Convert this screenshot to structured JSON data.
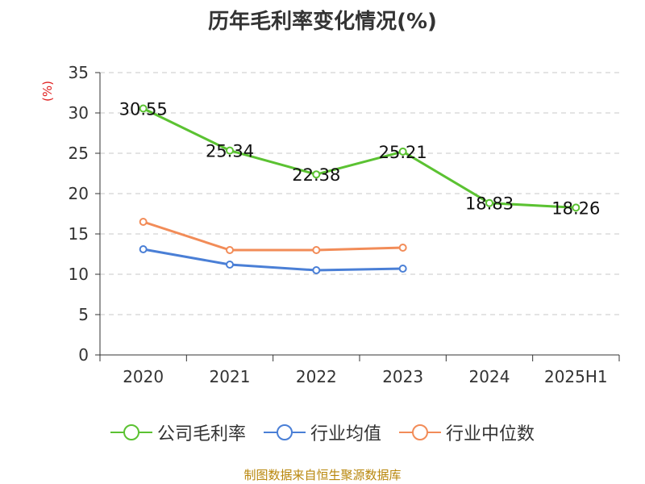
{
  "chart_data": {
    "type": "line",
    "title": "历年毛利率变化情况(%)",
    "ylabel": "(%)",
    "categories": [
      "2020",
      "2021",
      "2022",
      "2023",
      "2024",
      "2025H1"
    ],
    "ylim": [
      0,
      35
    ],
    "yticks": [
      0,
      5,
      10,
      15,
      20,
      25,
      30,
      35
    ],
    "grid": true,
    "legend_position": "bottom",
    "series": [
      {
        "name": "公司毛利率",
        "color": "#5bc232",
        "values": [
          30.55,
          25.34,
          22.38,
          25.21,
          18.83,
          18.26
        ],
        "labels": true
      },
      {
        "name": "行业均值",
        "color": "#4a7fd6",
        "values": [
          13.1,
          11.2,
          10.5,
          10.7,
          null,
          null
        ],
        "labels": false
      },
      {
        "name": "行业中位数",
        "color": "#f28c58",
        "values": [
          16.5,
          13.0,
          13.0,
          13.3,
          null,
          null
        ],
        "labels": false
      }
    ]
  },
  "source": "制图数据来自恒生聚源数据库"
}
